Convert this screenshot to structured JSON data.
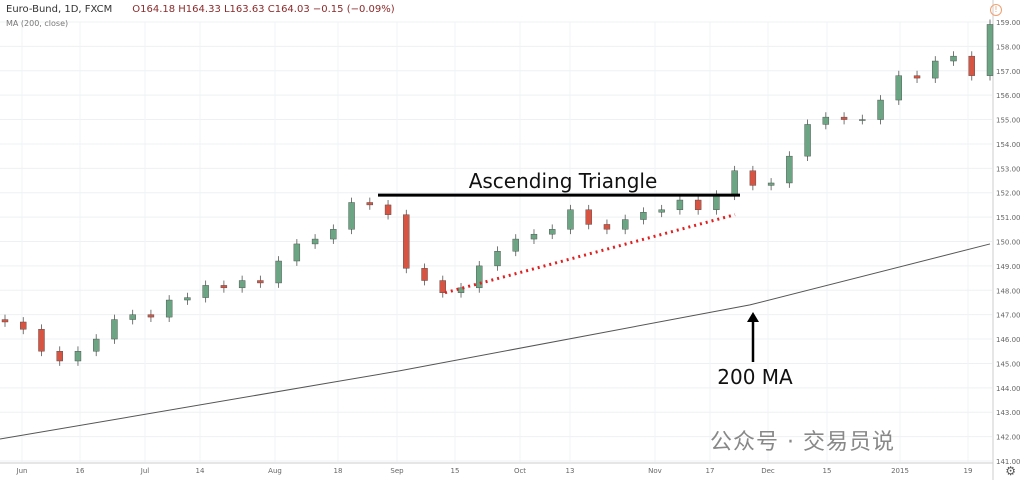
{
  "header": {
    "symbol": "Euro-Bund, 1D, FXCM",
    "ohlc": "O164.18  H164.33  L163.63  C164.03  −0.15 (−0.09%)",
    "indicator": "MA (200, close)"
  },
  "watermark": "公众号 · 交易员说",
  "colors": {
    "up": "#6ba583",
    "down": "#d75442",
    "ma": "#555555",
    "trend": "#e02020"
  },
  "chart_data": {
    "type": "candlestick",
    "ylim": [
      141,
      159
    ],
    "yticks": [
      141,
      142,
      143,
      144,
      145,
      146,
      147,
      148,
      149,
      150,
      151,
      152,
      153,
      154,
      155,
      156,
      157,
      158,
      159
    ],
    "xticks": [
      "Jun",
      "16",
      "Jul",
      "14",
      "Aug",
      "18",
      "Sep",
      "15",
      "Oct",
      "13",
      "Nov",
      "17",
      "Dec",
      "15",
      "2015",
      "19"
    ],
    "closes": [
      146.7,
      146.4,
      145.5,
      145.1,
      145.5,
      146.0,
      146.8,
      147.0,
      146.9,
      147.6,
      147.7,
      148.2,
      148.1,
      148.4,
      148.3,
      149.2,
      149.9,
      150.1,
      150.5,
      151.6,
      151.5,
      151.1,
      148.9,
      148.4,
      147.9,
      148.1,
      149.0,
      149.6,
      150.1,
      150.3,
      150.5,
      151.3,
      150.7,
      150.5,
      150.9,
      151.2,
      151.3,
      151.7,
      151.3,
      151.9,
      152.9,
      152.3,
      152.4,
      153.5,
      154.8,
      155.1,
      155.0,
      155.0,
      155.8,
      156.8,
      156.7,
      157.4,
      157.6,
      156.8,
      158.9
    ],
    "moving_average": {
      "name": "MA (200, close)",
      "values": [
        141.9,
        144.7,
        147.4,
        149.9
      ]
    },
    "annotations": {
      "resistance_label": "Ascending Triangle",
      "resistance": 151.9,
      "ma_label": "200 MA",
      "support_from": 147.9,
      "support_to": 151.1
    }
  }
}
